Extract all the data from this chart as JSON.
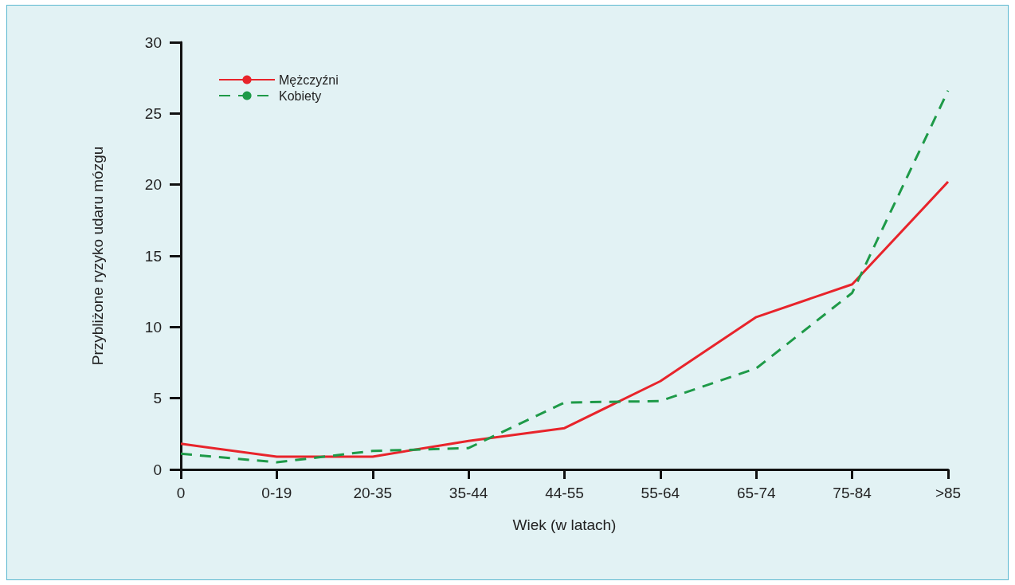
{
  "chart_data": {
    "type": "line",
    "xlabel": "Wiek (w latach)",
    "ylabel": "Przybliżone ryzyko udaru mózgu",
    "categories": [
      "0",
      "0-19",
      "20-35",
      "35-44",
      "44-55",
      "55-64",
      "65-74",
      "75-84",
      ">85"
    ],
    "series": [
      {
        "name": "Mężczyźni",
        "color": "#e8242b",
        "line_style": "solid",
        "values": [
          1.8,
          0.9,
          0.9,
          2.0,
          2.9,
          6.2,
          10.7,
          13.0,
          20.2
        ]
      },
      {
        "name": "Kobiety",
        "color": "#1e9a48",
        "line_style": "dashed",
        "values": [
          1.1,
          0.5,
          1.3,
          1.5,
          4.7,
          4.8,
          7.1,
          12.4,
          26.6
        ]
      }
    ],
    "ylim": [
      0,
      30
    ],
    "yticks": [
      0,
      5,
      10,
      15,
      20,
      25,
      30
    ],
    "grid": false,
    "legend": "top left",
    "marker": "none"
  }
}
